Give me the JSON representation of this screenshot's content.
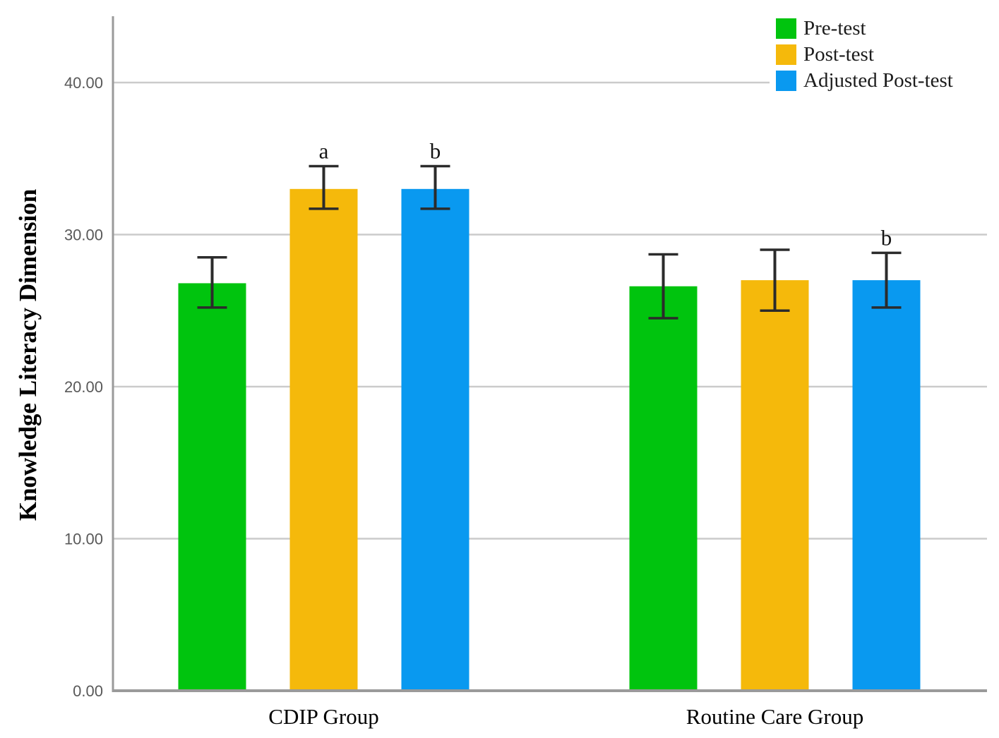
{
  "chart_data": {
    "type": "bar",
    "title": "",
    "xlabel": "",
    "ylabel": "Knowledge Literacy Dimension",
    "categories": [
      "CDIP Group",
      "Routine Care Group"
    ],
    "series": [
      {
        "name": "Pre-test",
        "color": "#00C40E",
        "values": [
          26.8,
          26.6
        ],
        "err_high": [
          28.5,
          28.7
        ],
        "err_low": [
          25.2,
          24.5
        ],
        "letters": [
          "",
          ""
        ]
      },
      {
        "name": "Post-test",
        "color": "#F5B90B",
        "values": [
          33.0,
          27.0
        ],
        "err_high": [
          34.5,
          29.0
        ],
        "err_low": [
          31.7,
          25.0
        ],
        "letters": [
          "a",
          ""
        ]
      },
      {
        "name": "Adjusted Post-test",
        "color": "#0999F0",
        "values": [
          33.0,
          27.0
        ],
        "err_high": [
          34.5,
          28.8
        ],
        "err_low": [
          31.7,
          25.2
        ],
        "letters": [
          "b",
          "b"
        ]
      }
    ],
    "y_ticks": [
      "0.00",
      "10.00",
      "20.00",
      "30.00",
      "40.00"
    ],
    "y_tick_values": [
      0,
      10,
      20,
      30,
      40
    ],
    "ylim": [
      0,
      44.36
    ],
    "grid": true,
    "error_bars": true,
    "legend_position": "top-right",
    "colors": {
      "grid": "#CBCBCB",
      "axis": "#9A9A9A",
      "baseline": "#9A9A9A",
      "tick_label": "#595959",
      "error_bar": "#2B2B2B",
      "annotation": "#141414",
      "background": "#FFFFFF"
    }
  }
}
